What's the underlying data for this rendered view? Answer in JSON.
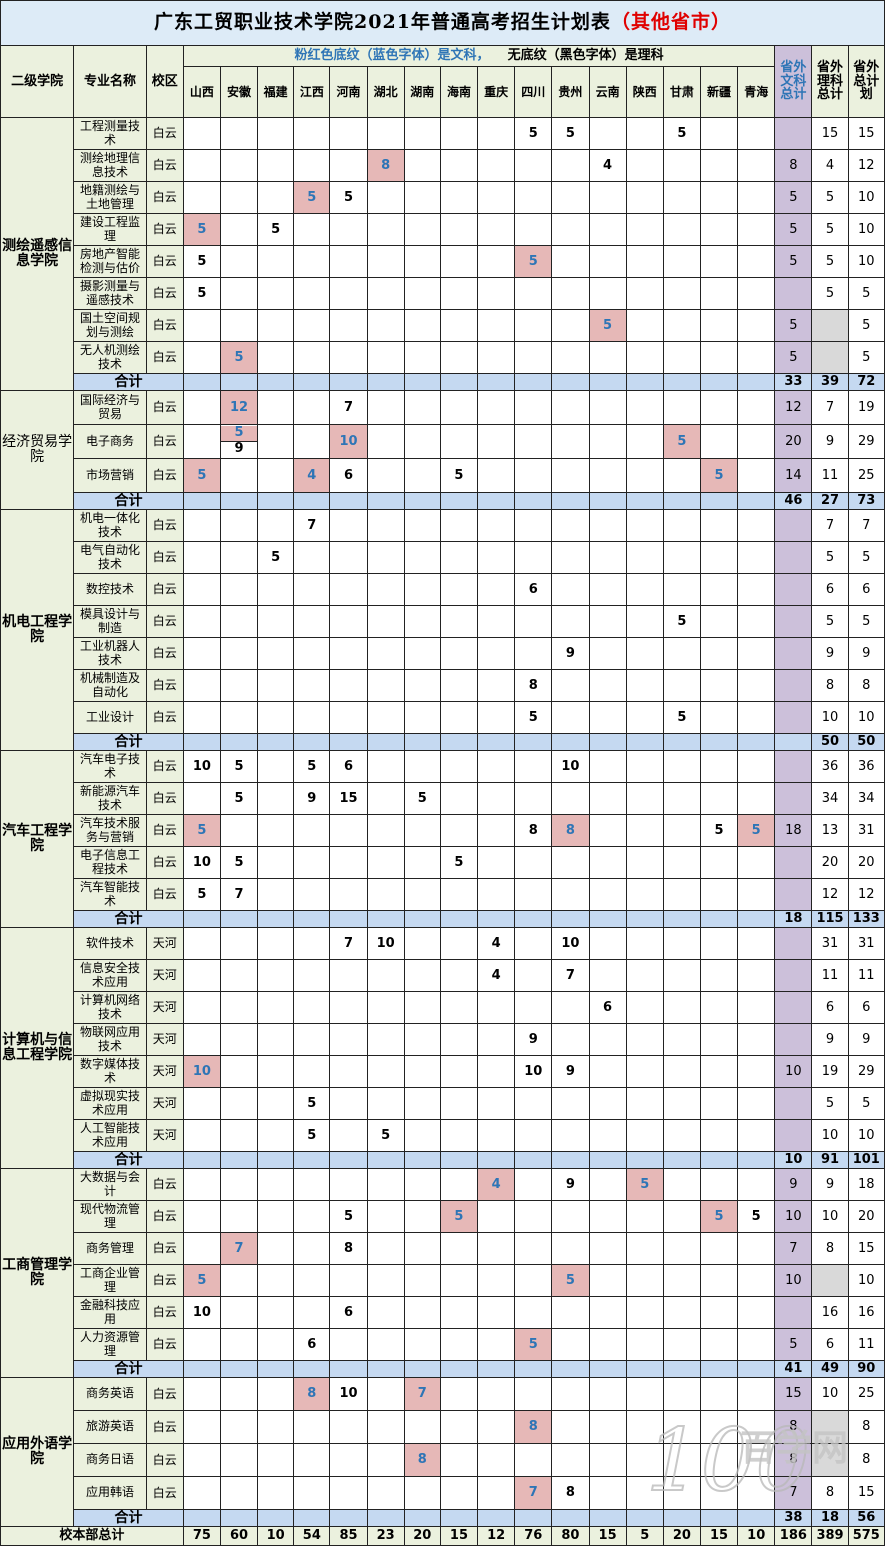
{
  "title": {
    "main": "广东工贸职业技术学院2021年普通高考招生计划表",
    "suffix": "（其他省市）"
  },
  "legend": {
    "pink_text": "粉红色底纹（蓝色字体）是文科，",
    "plain_text": "无底纹（黑色字体）是理科"
  },
  "headers": {
    "college": "二级学院",
    "major": "专业名称",
    "campus": "校区",
    "tot_wen": "省外文科总计",
    "tot_li": "省外理科总计",
    "tot_all": "省外总计划"
  },
  "provinces": [
    "山西",
    "安徽",
    "福建",
    "江西",
    "河南",
    "湖北",
    "湖南",
    "海南",
    "重庆",
    "四川",
    "贵州",
    "云南",
    "陕西",
    "甘肃",
    "新疆",
    "青海"
  ],
  "subtotal_label": "合计",
  "colleges": [
    {
      "name": "测绘遥感信息学院",
      "bold": true,
      "rows": [
        {
          "major": "工程测量技术",
          "campus": "白云",
          "cells": {
            "9": "5",
            "10": "5",
            "13": "5"
          },
          "wen": "",
          "li": "15",
          "total": "15"
        },
        {
          "major": "测绘地理信息技术",
          "campus": "白云",
          "cells": {
            "5": "8p",
            "11": "4"
          },
          "wen": "8",
          "li": "4",
          "total": "12"
        },
        {
          "major": "地籍测绘与土地管理",
          "campus": "白云",
          "cells": {
            "3": "5p",
            "4": "5"
          },
          "wen": "5",
          "li": "5",
          "total": "10"
        },
        {
          "major": "建设工程监理",
          "campus": "白云",
          "cells": {
            "0": "5p",
            "2": "5"
          },
          "wen": "5",
          "li": "5",
          "total": "10"
        },
        {
          "major": "房地产智能检测与估价",
          "campus": "白云",
          "cells": {
            "0": "5",
            "9": "5p"
          },
          "wen": "5",
          "li": "5",
          "total": "10"
        },
        {
          "major": "摄影测量与遥感技术",
          "campus": "白云",
          "cells": {
            "0": "5"
          },
          "wen": "",
          "li": "5",
          "total": "5"
        },
        {
          "major": "国土空间规划与测绘",
          "campus": "白云",
          "cells": {
            "11": "5p"
          },
          "wen": "5",
          "li": "",
          "total": "5"
        },
        {
          "major": "无人机测绘技术",
          "campus": "白云",
          "cells": {
            "1": "5p"
          },
          "wen": "5",
          "li": "",
          "total": "5"
        }
      ],
      "subtotal": {
        "wen": "33",
        "li": "39",
        "total": "72"
      }
    },
    {
      "name": "经济贸易学院",
      "bold": false,
      "rows": [
        {
          "major": "国际经济与贸易",
          "campus": "白云",
          "cells": {
            "1": "12p",
            "4": "7"
          },
          "wen": "12",
          "li": "7",
          "total": "19"
        },
        {
          "major": "电子商务",
          "campus": "白云",
          "cells": {
            "1": "5p|9",
            "4": "10p",
            "13": "5p"
          },
          "wen": "20",
          "li": "9",
          "total": "29"
        },
        {
          "major": "市场营销",
          "campus": "白云",
          "cells": {
            "0": "5p",
            "3": "4p",
            "4": "6",
            "7": "5",
            "14": "5p"
          },
          "wen": "14",
          "li": "11",
          "total": "25"
        }
      ],
      "subtotal": {
        "wen": "46",
        "li": "27",
        "total": "73"
      }
    },
    {
      "name": "机电工程学院",
      "bold": true,
      "rows": [
        {
          "major": "机电一体化技术",
          "campus": "白云",
          "cells": {
            "3": "7"
          },
          "wen": "",
          "li": "7",
          "total": "7"
        },
        {
          "major": "电气自动化技术",
          "campus": "白云",
          "cells": {
            "2": "5"
          },
          "wen": "",
          "li": "5",
          "total": "5"
        },
        {
          "major": "数控技术",
          "campus": "白云",
          "cells": {
            "9": "6"
          },
          "wen": "",
          "li": "6",
          "total": "6"
        },
        {
          "major": "模具设计与制造",
          "campus": "白云",
          "cells": {
            "13": "5"
          },
          "wen": "",
          "li": "5",
          "total": "5"
        },
        {
          "major": "工业机器人技术",
          "campus": "白云",
          "cells": {
            "10": "9"
          },
          "wen": "",
          "li": "9",
          "total": "9"
        },
        {
          "major": "机械制造及自动化",
          "campus": "白云",
          "cells": {
            "9": "8"
          },
          "wen": "",
          "li": "8",
          "total": "8"
        },
        {
          "major": "工业设计",
          "campus": "白云",
          "cells": {
            "9": "5",
            "13": "5"
          },
          "wen": "",
          "li": "10",
          "total": "10"
        }
      ],
      "subtotal": {
        "wen": "",
        "li": "50",
        "total": "50"
      }
    },
    {
      "name": "汽车工程学院",
      "bold": true,
      "rows": [
        {
          "major": "汽车电子技术",
          "campus": "白云",
          "cells": {
            "0": "10",
            "1": "5",
            "3": "5",
            "4": "6",
            "10": "10"
          },
          "wen": "",
          "li": "36",
          "total": "36"
        },
        {
          "major": "新能源汽车技术",
          "campus": "白云",
          "cells": {
            "1": "5",
            "3": "9",
            "4": "15",
            "6": "5"
          },
          "wen": "",
          "li": "34",
          "total": "34"
        },
        {
          "major": "汽车技术服务与营销",
          "campus": "白云",
          "cells": {
            "0": "5p",
            "9": "8",
            "10": "8p",
            "14": "5",
            "15": "5p"
          },
          "wen": "18",
          "li": "13",
          "total": "31"
        },
        {
          "major": "电子信息工程技术",
          "campus": "白云",
          "cells": {
            "0": "10",
            "1": "5",
            "7": "5"
          },
          "wen": "",
          "li": "20",
          "total": "20"
        },
        {
          "major": "汽车智能技术",
          "campus": "白云",
          "cells": {
            "0": "5",
            "1": "7"
          },
          "wen": "",
          "li": "12",
          "total": "12"
        }
      ],
      "subtotal": {
        "wen": "18",
        "li": "115",
        "total": "133"
      }
    },
    {
      "name": "计算机与信息工程学院",
      "bold": true,
      "rows": [
        {
          "major": "软件技术",
          "campus": "天河",
          "cells": {
            "4": "7",
            "5": "10",
            "8": "4",
            "10": "10"
          },
          "wen": "",
          "li": "31",
          "total": "31"
        },
        {
          "major": "信息安全技术应用",
          "campus": "天河",
          "cells": {
            "8": "4",
            "10": "7"
          },
          "wen": "",
          "li": "11",
          "total": "11"
        },
        {
          "major": "计算机网络技术",
          "campus": "天河",
          "cells": {
            "11": "6"
          },
          "wen": "",
          "li": "6",
          "total": "6"
        },
        {
          "major": "物联网应用技术",
          "campus": "天河",
          "cells": {
            "9": "9"
          },
          "wen": "",
          "li": "9",
          "total": "9"
        },
        {
          "major": "数字媒体技术",
          "campus": "天河",
          "cells": {
            "0": "10p",
            "9": "10",
            "10": "9"
          },
          "wen": "10",
          "li": "19",
          "total": "29"
        },
        {
          "major": "虚拟现实技术应用",
          "campus": "天河",
          "cells": {
            "3": "5"
          },
          "wen": "",
          "li": "5",
          "total": "5"
        },
        {
          "major": "人工智能技术应用",
          "campus": "天河",
          "cells": {
            "3": "5",
            "5": "5"
          },
          "wen": "",
          "li": "10",
          "total": "10"
        }
      ],
      "subtotal": {
        "wen": "10",
        "li": "91",
        "total": "101"
      }
    },
    {
      "name": "工商管理学院",
      "bold": true,
      "rows": [
        {
          "major": "大数据与会计",
          "campus": "白云",
          "cells": {
            "8": "4p",
            "10": "9",
            "12": "5p"
          },
          "wen": "9",
          "li": "9",
          "total": "18"
        },
        {
          "major": "现代物流管理",
          "campus": "白云",
          "cells": {
            "4": "5",
            "7": "5p",
            "14": "5p",
            "15": "5"
          },
          "wen": "10",
          "li": "10",
          "total": "20"
        },
        {
          "major": "商务管理",
          "campus": "白云",
          "cells": {
            "1": "7p",
            "4": "8"
          },
          "wen": "7",
          "li": "8",
          "total": "15"
        },
        {
          "major": "工商企业管理",
          "campus": "白云",
          "cells": {
            "0": "5p",
            "10": "5p"
          },
          "wen": "10",
          "li": "",
          "total": "10"
        },
        {
          "major": "金融科技应用",
          "campus": "白云",
          "cells": {
            "0": "10",
            "4": "6"
          },
          "wen": "",
          "li": "16",
          "total": "16"
        },
        {
          "major": "人力资源管理",
          "campus": "白云",
          "cells": {
            "3": "6",
            "9": "5p"
          },
          "wen": "5",
          "li": "6",
          "total": "11"
        }
      ],
      "subtotal": {
        "wen": "41",
        "li": "49",
        "total": "90"
      }
    },
    {
      "name": "应用外语学院",
      "bold": true,
      "rows": [
        {
          "major": "商务英语",
          "campus": "白云",
          "cells": {
            "3": "8p",
            "4": "10",
            "6": "7p"
          },
          "wen": "15",
          "li": "10",
          "total": "25"
        },
        {
          "major": "旅游英语",
          "campus": "白云",
          "cells": {
            "9": "8p"
          },
          "wen": "8",
          "li": "",
          "total": "8"
        },
        {
          "major": "商务日语",
          "campus": "白云",
          "cells": {
            "6": "8p"
          },
          "wen": "8",
          "li": "",
          "total": "8"
        },
        {
          "major": "应用韩语",
          "campus": "白云",
          "cells": {
            "9": "7p",
            "10": "8"
          },
          "wen": "7",
          "li": "8",
          "total": "15"
        }
      ],
      "subtotal": {
        "wen": "38",
        "li": "18",
        "total": "56"
      }
    }
  ],
  "grand": {
    "label": "校本部总计",
    "values": [
      "75",
      "60",
      "10",
      "54",
      "85",
      "23",
      "20",
      "15",
      "12",
      "76",
      "80",
      "15",
      "5",
      "20",
      "15",
      "10"
    ],
    "wen": "186",
    "li": "389",
    "total": "575"
  },
  "watermark": {
    "digits": "100",
    "text": "百学网"
  },
  "colors": {
    "wen_fill": "#e6b8b7",
    "wen_text": "#2e75b6",
    "subtotal_fill": "#c5d9f1",
    "header_fill": "#ddebf7",
    "green_fill": "#ebf1de",
    "wen_total_fill": "#ccc0da",
    "title_red": "#e00000"
  }
}
